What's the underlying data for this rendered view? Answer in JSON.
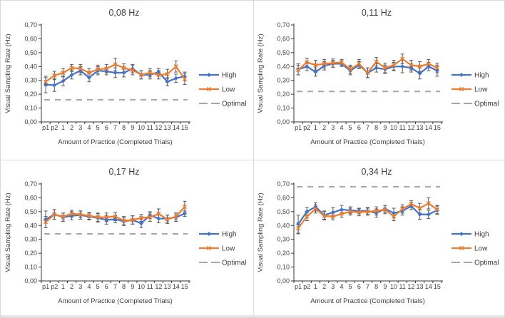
{
  "page": {
    "background": "#ffffff",
    "border_color": "#d9d9d9",
    "bottom_strip_color": "#e7e7e7"
  },
  "colors": {
    "high": "#4472C4",
    "low": "#ED7D31",
    "optimal": "#A6A6A6",
    "error_bar": "#595959",
    "axis": "#333333",
    "text": "#404040"
  },
  "legend": {
    "position": "right",
    "entries": [
      "High",
      "Low",
      "Optimal"
    ]
  },
  "chart_data": [
    {
      "type": "line",
      "title": "0,08 Hz",
      "xlabel": "Amount of Practice (Completed Trials)",
      "ylabel": "Visual Sampling Rate (Hz)",
      "ylim": [
        0,
        0.7
      ],
      "yticks": [
        "0,00",
        "0,10",
        "0,20",
        "0,30",
        "0,40",
        "0,50",
        "0,60",
        "0,70"
      ],
      "grid": false,
      "categories": [
        "p1",
        "p2",
        "1",
        "2",
        "3",
        "4",
        "5",
        "6",
        "7",
        "8",
        "9",
        "10",
        "11",
        "12",
        "13",
        "14",
        "15"
      ],
      "series": [
        {
          "name": "High",
          "color_key": "high",
          "marker": "diamond",
          "values": [
            0.27,
            0.265,
            0.295,
            0.34,
            0.37,
            0.32,
            0.37,
            0.365,
            0.355,
            0.355,
            0.385,
            0.34,
            0.34,
            0.36,
            0.29,
            0.315,
            0.33
          ],
          "errors": [
            0.06,
            0.045,
            0.035,
            0.03,
            0.03,
            0.03,
            0.03,
            0.025,
            0.035,
            0.03,
            0.03,
            0.03,
            0.03,
            0.025,
            0.03,
            0.03,
            0.03
          ]
        },
        {
          "name": "Low",
          "color_key": "low",
          "marker": "x",
          "values": [
            0.29,
            0.335,
            0.355,
            0.39,
            0.385,
            0.355,
            0.38,
            0.385,
            0.415,
            0.39,
            0.375,
            0.34,
            0.355,
            0.34,
            0.345,
            0.4,
            0.31
          ],
          "errors": [
            0.03,
            0.03,
            0.03,
            0.025,
            0.03,
            0.03,
            0.03,
            0.03,
            0.045,
            0.03,
            0.035,
            0.03,
            0.03,
            0.03,
            0.035,
            0.04,
            0.04
          ]
        }
      ],
      "optimal": {
        "label": "Optimal",
        "value": 0.16
      }
    },
    {
      "type": "line",
      "title": "0,11 Hz",
      "xlabel": "Amount of Practice (Completed Trials)",
      "ylabel": "Visual Sampling Rate (Hz)",
      "ylim": [
        0,
        0.7
      ],
      "yticks": [
        "0,00",
        "0,10",
        "0,20",
        "0,30",
        "0,40",
        "0,50",
        "0,60",
        "0,70"
      ],
      "grid": false,
      "categories": [
        "p1",
        "p2",
        "1",
        "2",
        "3",
        "4",
        "5",
        "6",
        "7",
        "8",
        "9",
        "10",
        "11",
        "12",
        "13",
        "14",
        "15"
      ],
      "series": [
        {
          "name": "High",
          "color_key": "high",
          "marker": "diamond",
          "values": [
            0.38,
            0.4,
            0.36,
            0.405,
            0.42,
            0.42,
            0.37,
            0.41,
            0.355,
            0.39,
            0.38,
            0.4,
            0.4,
            0.39,
            0.35,
            0.4,
            0.37
          ],
          "errors": [
            0.04,
            0.03,
            0.03,
            0.03,
            0.025,
            0.02,
            0.03,
            0.025,
            0.035,
            0.03,
            0.03,
            0.03,
            0.045,
            0.03,
            0.04,
            0.03,
            0.04
          ]
        },
        {
          "name": "Low",
          "color_key": "low",
          "marker": "x",
          "values": [
            0.375,
            0.43,
            0.41,
            0.42,
            0.425,
            0.43,
            0.38,
            0.42,
            0.355,
            0.435,
            0.39,
            0.41,
            0.455,
            0.41,
            0.4,
            0.42,
            0.39
          ],
          "errors": [
            0.035,
            0.03,
            0.035,
            0.03,
            0.03,
            0.02,
            0.03,
            0.03,
            0.035,
            0.03,
            0.035,
            0.035,
            0.035,
            0.035,
            0.035,
            0.03,
            0.035
          ]
        }
      ],
      "optimal": {
        "label": "Optimal",
        "value": 0.22
      }
    },
    {
      "type": "line",
      "title": "0,17 Hz",
      "xlabel": "Amount of Practice (Completed Trials)",
      "ylabel": "Visual Sampling Rate (Hz)",
      "ylim": [
        0,
        0.7
      ],
      "yticks": [
        "0,00",
        "0,10",
        "0,20",
        "0,30",
        "0,40",
        "0,50",
        "0,60",
        "0,70"
      ],
      "grid": false,
      "categories": [
        "p1",
        "p2",
        "1",
        "2",
        "3",
        "4",
        "5",
        "6",
        "7",
        "8",
        "9",
        "10",
        "11",
        "12",
        "13",
        "14",
        "15"
      ],
      "series": [
        {
          "name": "High",
          "color_key": "high",
          "marker": "diamond",
          "values": [
            0.445,
            0.48,
            0.46,
            0.47,
            0.475,
            0.465,
            0.455,
            0.44,
            0.445,
            0.43,
            0.44,
            0.415,
            0.475,
            0.45,
            0.45,
            0.46,
            0.485
          ],
          "errors": [
            0.06,
            0.035,
            0.03,
            0.03,
            0.03,
            0.025,
            0.03,
            0.03,
            0.025,
            0.03,
            0.03,
            0.03,
            0.025,
            0.03,
            0.025,
            0.03,
            0.02
          ]
        },
        {
          "name": "Low",
          "color_key": "low",
          "marker": "x",
          "values": [
            0.425,
            0.48,
            0.465,
            0.485,
            0.48,
            0.47,
            0.46,
            0.46,
            0.465,
            0.435,
            0.44,
            0.455,
            0.46,
            0.485,
            0.445,
            0.465,
            0.535
          ],
          "errors": [
            0.04,
            0.035,
            0.025,
            0.025,
            0.025,
            0.025,
            0.03,
            0.03,
            0.03,
            0.03,
            0.03,
            0.025,
            0.03,
            0.035,
            0.03,
            0.025,
            0.04
          ]
        }
      ],
      "optimal": {
        "label": "Optimal",
        "value": 0.34
      }
    },
    {
      "type": "line",
      "title": "0,34 Hz",
      "xlabel": "Amount of Practice (Completed Trials)",
      "ylabel": "Visual Sampling Rate (Hz)",
      "ylim": [
        0,
        0.7
      ],
      "yticks": [
        "0,00",
        "0,10",
        "0,20",
        "0,30",
        "0,40",
        "0,50",
        "0,60",
        "0,70"
      ],
      "grid": false,
      "categories": [
        "p1",
        "p2",
        "1",
        "2",
        "3",
        "4",
        "5",
        "6",
        "7",
        "8",
        "9",
        "10",
        "11",
        "12",
        "13",
        "14",
        "15"
      ],
      "series": [
        {
          "name": "High",
          "color_key": "high",
          "marker": "diamond",
          "values": [
            0.41,
            0.5,
            0.535,
            0.475,
            0.495,
            0.515,
            0.51,
            0.505,
            0.505,
            0.49,
            0.52,
            0.49,
            0.505,
            0.54,
            0.48,
            0.48,
            0.51
          ],
          "errors": [
            0.065,
            0.03,
            0.03,
            0.03,
            0.035,
            0.03,
            0.025,
            0.02,
            0.025,
            0.03,
            0.025,
            0.035,
            0.03,
            0.025,
            0.035,
            0.03,
            0.03
          ]
        },
        {
          "name": "Low",
          "color_key": "low",
          "marker": "x",
          "values": [
            0.38,
            0.465,
            0.52,
            0.47,
            0.465,
            0.485,
            0.5,
            0.495,
            0.5,
            0.505,
            0.515,
            0.465,
            0.52,
            0.555,
            0.525,
            0.56,
            0.515
          ],
          "errors": [
            0.04,
            0.03,
            0.03,
            0.03,
            0.025,
            0.025,
            0.025,
            0.025,
            0.025,
            0.03,
            0.03,
            0.03,
            0.03,
            0.025,
            0.035,
            0.04,
            0.03
          ]
        }
      ],
      "optimal": {
        "label": "Optimal",
        "value": 0.68
      }
    }
  ]
}
